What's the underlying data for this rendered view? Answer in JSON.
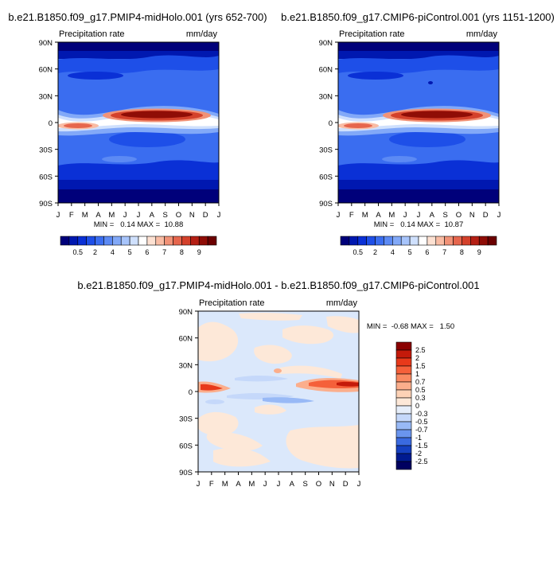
{
  "chart_data": [
    {
      "type": "heatmap",
      "title": "b.e21.B1850.f09_g17.PMIP4-midHolo.001 (yrs 652-700)",
      "left_label": "Precipitation rate",
      "right_label": "mm/day",
      "x_ticks": [
        "J",
        "F",
        "M",
        "A",
        "M",
        "J",
        "J",
        "A",
        "S",
        "O",
        "N",
        "D",
        "J"
      ],
      "y_ticks": [
        "90N",
        "60N",
        "30N",
        "0",
        "30S",
        "60S",
        "90S"
      ],
      "ylim": [
        -90,
        90
      ],
      "minmax": "MIN =   0.14 MAX =  10.88",
      "colorbar": {
        "labels": [
          "0.5",
          "2",
          "4",
          "5",
          "6",
          "7",
          "8",
          "9"
        ],
        "colors": [
          "#00007a",
          "#0018b0",
          "#0a30d6",
          "#1e4fe8",
          "#3a6df0",
          "#5c8af4",
          "#82a9f8",
          "#a7c4fb",
          "#cfe0fd",
          "#ffffff",
          "#fde1d2",
          "#f9bca4",
          "#f19277",
          "#e6664d",
          "#d4412b",
          "#b51f14",
          "#8f0d06",
          "#6b0000"
        ]
      }
    },
    {
      "type": "heatmap",
      "title": "b.e21.B1850.f09_g17.CMIP6-piControl.001 (yrs 1151-1200)",
      "left_label": "Precipitation rate",
      "right_label": "mm/day",
      "x_ticks": [
        "J",
        "F",
        "M",
        "A",
        "M",
        "J",
        "J",
        "A",
        "S",
        "O",
        "N",
        "D",
        "J"
      ],
      "y_ticks": [
        "90N",
        "60N",
        "30N",
        "0",
        "30S",
        "60S",
        "90S"
      ],
      "ylim": [
        -90,
        90
      ],
      "minmax": "MIN =   0.14 MAX =  10.87",
      "colorbar": {
        "labels": [
          "0.5",
          "2",
          "4",
          "5",
          "6",
          "7",
          "8",
          "9"
        ],
        "colors": [
          "#00007a",
          "#0018b0",
          "#0a30d6",
          "#1e4fe8",
          "#3a6df0",
          "#5c8af4",
          "#82a9f8",
          "#a7c4fb",
          "#cfe0fd",
          "#ffffff",
          "#fde1d2",
          "#f9bca4",
          "#f19277",
          "#e6664d",
          "#d4412b",
          "#b51f14",
          "#8f0d06",
          "#6b0000"
        ]
      }
    },
    {
      "type": "heatmap",
      "title": "b.e21.B1850.f09_g17.PMIP4-midHolo.001 - b.e21.B1850.f09_g17.CMIP6-piControl.001",
      "left_label": "Precipitation rate",
      "right_label": "mm/day",
      "x_ticks": [
        "J",
        "F",
        "M",
        "A",
        "M",
        "J",
        "J",
        "A",
        "S",
        "O",
        "N",
        "D",
        "J"
      ],
      "y_ticks": [
        "90N",
        "60N",
        "30N",
        "0",
        "30S",
        "60S",
        "90S"
      ],
      "ylim": [
        -90,
        90
      ],
      "minmax": "MIN =  -0.68 MAX =   1.50",
      "colorbar": {
        "labels": [
          "2.5",
          "2",
          "1.5",
          "1",
          "0.7",
          "0.5",
          "0.3",
          "0",
          "-0.3",
          "-0.5",
          "-0.7",
          "-1",
          "-1.5",
          "-2",
          "-2.5"
        ],
        "colors": [
          "#8a0000",
          "#c41a0a",
          "#e8391a",
          "#f5603a",
          "#f98a62",
          "#fbae8c",
          "#fdd2b6",
          "#fde8d8",
          "#e6eefa",
          "#c5d8fa",
          "#98b9f6",
          "#6a95ee",
          "#3a6ae0",
          "#1540c0",
          "#001a90",
          "#000060"
        ]
      }
    }
  ]
}
